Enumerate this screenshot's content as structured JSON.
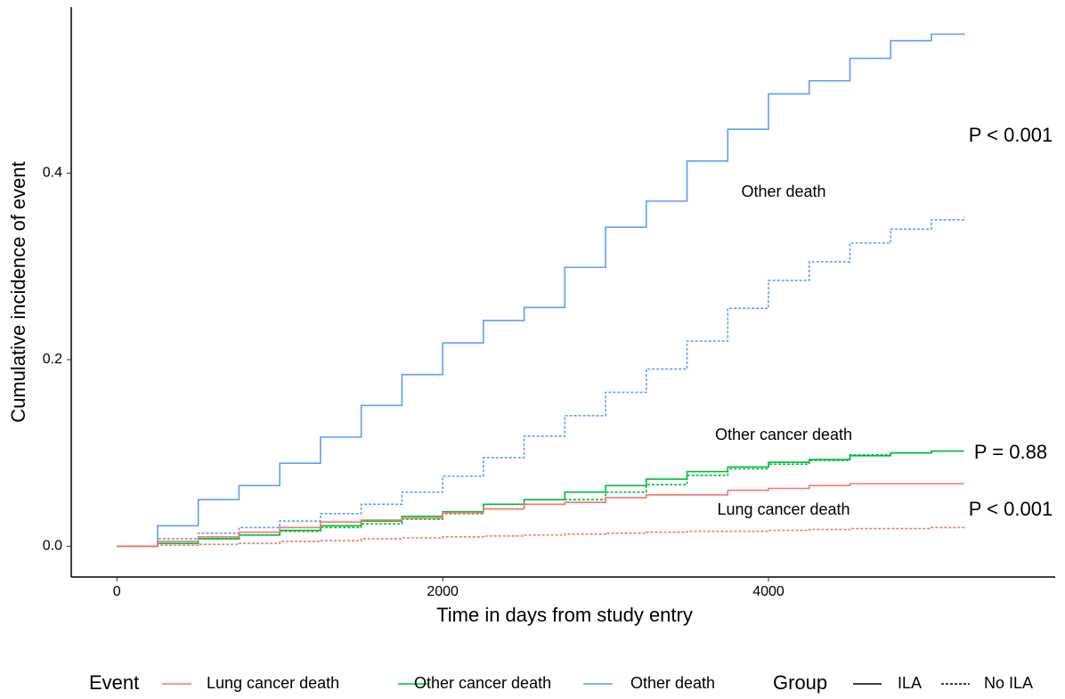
{
  "chart_data": {
    "type": "line",
    "step": true,
    "xlabel": "Time in days from study entry",
    "ylabel": "Cumulative incidence of event",
    "xlim": [
      -280,
      5760
    ],
    "ylim": [
      -0.033,
      0.578
    ],
    "xticks": [
      0,
      2000,
      4000
    ],
    "yticks": [
      {
        "value": 0,
        "label": "0.0"
      },
      {
        "value": 0.2,
        "label": "0.2"
      },
      {
        "value": 0.4,
        "label": "0.4"
      }
    ],
    "grid": false,
    "x": [
      0,
      250,
      500,
      750,
      1000,
      1250,
      1500,
      1750,
      2000,
      2250,
      2500,
      2750,
      3000,
      3250,
      3500,
      3750,
      4000,
      4250,
      4500,
      4750,
      5000,
      5200
    ],
    "legend": {
      "position": "bottom",
      "event": {
        "title": "Event",
        "items": [
          {
            "name": "Lung cancer death",
            "color": "#f8766d"
          },
          {
            "name": "Other cancer death",
            "color": "#00ba38"
          },
          {
            "name": "Other death",
            "color": "#619cff"
          }
        ]
      },
      "group": {
        "title": "Group",
        "items": [
          {
            "name": "ILA",
            "dash": "solid"
          },
          {
            "name": "No ILA",
            "dash": "dotted"
          }
        ]
      }
    },
    "series": [
      {
        "event": 2,
        "group": 0,
        "values": [
          0,
          0.022,
          0.05,
          0.065,
          0.089,
          0.117,
          0.151,
          0.184,
          0.218,
          0.242,
          0.256,
          0.299,
          0.342,
          0.37,
          0.413,
          0.447,
          0.485,
          0.499,
          0.523,
          0.542,
          0.549,
          0.55
        ]
      },
      {
        "event": 2,
        "group": 1,
        "values": [
          0,
          0.008,
          0.014,
          0.02,
          0.027,
          0.035,
          0.045,
          0.058,
          0.075,
          0.095,
          0.118,
          0.14,
          0.165,
          0.19,
          0.22,
          0.255,
          0.285,
          0.305,
          0.325,
          0.34,
          0.35,
          0.353
        ]
      },
      {
        "event": 1,
        "group": 0,
        "values": [
          0,
          0.003,
          0.008,
          0.012,
          0.017,
          0.022,
          0.027,
          0.032,
          0.037,
          0.045,
          0.05,
          0.058,
          0.065,
          0.072,
          0.08,
          0.085,
          0.09,
          0.093,
          0.097,
          0.1,
          0.102,
          0.102
        ]
      },
      {
        "event": 1,
        "group": 1,
        "values": [
          0,
          0.003,
          0.008,
          0.012,
          0.016,
          0.02,
          0.024,
          0.029,
          0.035,
          0.04,
          0.045,
          0.05,
          0.058,
          0.066,
          0.076,
          0.083,
          0.088,
          0.092,
          0.098,
          0.1,
          0.102,
          null
        ]
      },
      {
        "event": 0,
        "group": 0,
        "values": [
          0,
          0.005,
          0.01,
          0.015,
          0.02,
          0.026,
          0.028,
          0.03,
          0.036,
          0.04,
          0.045,
          0.047,
          0.052,
          0.055,
          0.055,
          0.06,
          0.062,
          0.065,
          0.067,
          0.067,
          0.067,
          0.067
        ]
      },
      {
        "event": 0,
        "group": 1,
        "values": [
          0,
          0.001,
          0.002,
          0.003,
          0.005,
          0.006,
          0.008,
          0.009,
          0.01,
          0.011,
          0.012,
          0.013,
          0.014,
          0.015,
          0.016,
          0.016,
          0.017,
          0.018,
          0.019,
          0.019,
          0.02,
          0.021
        ]
      }
    ],
    "annotations": [
      "Other death",
      "Other cancer death",
      "Lung cancer death",
      "P < 0.001",
      "P = 0.88",
      "P < 0.001"
    ]
  }
}
